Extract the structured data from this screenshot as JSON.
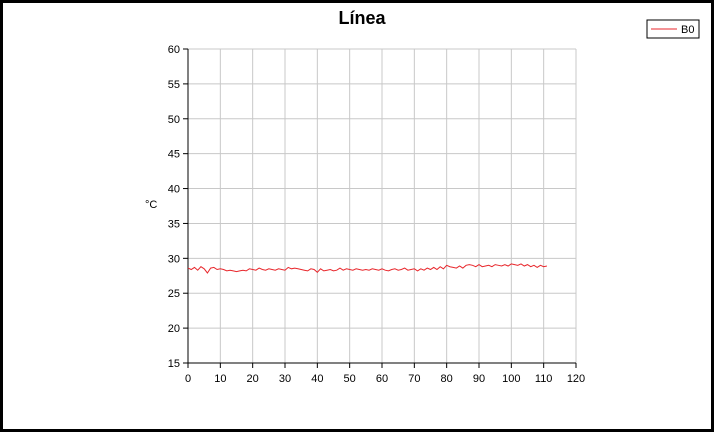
{
  "chart_data": {
    "type": "line",
    "title": "Línea",
    "xlabel": "",
    "ylabel": "°C",
    "xlim": [
      0,
      120
    ],
    "ylim": [
      15,
      60
    ],
    "x_ticks": [
      "0",
      "10",
      "20",
      "30",
      "40",
      "50",
      "60",
      "70",
      "80",
      "90",
      "100",
      "110",
      "120"
    ],
    "y_ticks": [
      "15",
      "20",
      "25",
      "30",
      "35",
      "40",
      "45",
      "50",
      "55",
      "60"
    ],
    "grid": true,
    "legend": "top-right",
    "series": [
      {
        "name": "B0",
        "color": "#e8262b",
        "x": [
          0,
          1,
          2,
          3,
          4,
          5,
          6,
          7,
          8,
          9,
          10,
          11,
          12,
          13,
          14,
          15,
          16,
          17,
          18,
          19,
          20,
          21,
          22,
          23,
          24,
          25,
          26,
          27,
          28,
          29,
          30,
          31,
          32,
          33,
          34,
          35,
          36,
          37,
          38,
          39,
          40,
          41,
          42,
          43,
          44,
          45,
          46,
          47,
          48,
          49,
          50,
          51,
          52,
          53,
          54,
          55,
          56,
          57,
          58,
          59,
          60,
          61,
          62,
          63,
          64,
          65,
          66,
          67,
          68,
          69,
          70,
          71,
          72,
          73,
          74,
          75,
          76,
          77,
          78,
          79,
          80,
          81,
          82,
          83,
          84,
          85,
          86,
          87,
          88,
          89,
          90,
          91,
          92,
          93,
          94,
          95,
          96,
          97,
          98,
          99,
          100,
          101,
          102,
          103,
          104,
          105,
          106,
          107,
          108,
          109,
          110,
          111
        ],
        "values": [
          28.6,
          28.4,
          28.7,
          28.3,
          28.8,
          28.5,
          27.9,
          28.6,
          28.7,
          28.4,
          28.5,
          28.4,
          28.2,
          28.3,
          28.2,
          28.1,
          28.2,
          28.3,
          28.2,
          28.5,
          28.4,
          28.3,
          28.6,
          28.4,
          28.3,
          28.5,
          28.4,
          28.3,
          28.5,
          28.4,
          28.3,
          28.7,
          28.5,
          28.6,
          28.5,
          28.4,
          28.3,
          28.2,
          28.5,
          28.4,
          28.0,
          28.5,
          28.2,
          28.3,
          28.4,
          28.2,
          28.3,
          28.6,
          28.3,
          28.5,
          28.4,
          28.3,
          28.5,
          28.4,
          28.3,
          28.4,
          28.3,
          28.5,
          28.4,
          28.3,
          28.5,
          28.3,
          28.2,
          28.4,
          28.5,
          28.3,
          28.4,
          28.6,
          28.3,
          28.4,
          28.5,
          28.2,
          28.5,
          28.3,
          28.6,
          28.4,
          28.7,
          28.4,
          28.8,
          28.5,
          29.0,
          28.8,
          28.7,
          28.6,
          28.9,
          28.6,
          29.0,
          29.1,
          29.0,
          28.8,
          29.1,
          28.8,
          28.9,
          29.0,
          28.8,
          29.1,
          29.0,
          28.9,
          29.1,
          28.9,
          29.2,
          29.1,
          29.0,
          29.2,
          28.9,
          29.1,
          28.8,
          29.0,
          28.7,
          29.0,
          28.8,
          28.9
        ]
      }
    ]
  }
}
